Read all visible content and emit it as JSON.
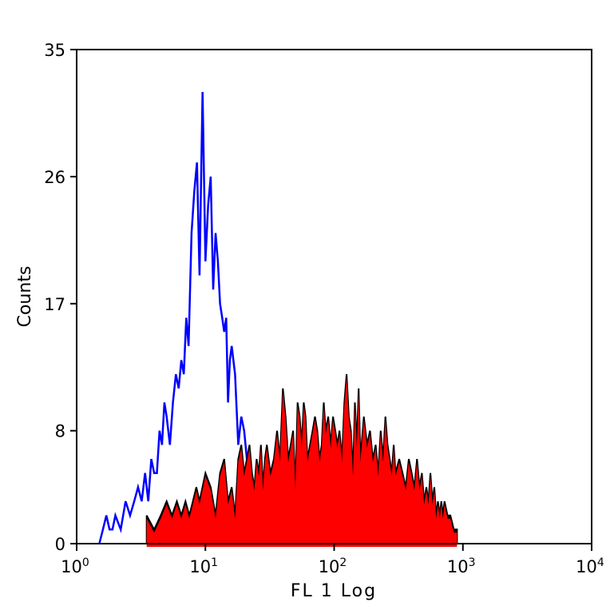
{
  "chart_data": {
    "type": "area",
    "title": "",
    "xlabel": "FL 1 Log",
    "ylabel": "Counts",
    "x_scale": "log",
    "xlim": [
      1,
      10000
    ],
    "ylim": [
      0,
      35
    ],
    "x_tick_values": [
      1,
      10,
      100,
      1000,
      10000
    ],
    "x_tick_base": "10",
    "x_tick_exponents": [
      "0",
      "1",
      "2",
      "3",
      "4"
    ],
    "y_ticks": [
      0,
      8,
      17,
      26,
      35
    ],
    "y_tick_labels": [
      "0",
      "8",
      "17",
      "26",
      "35"
    ],
    "grid": false,
    "legend": "none",
    "series": [
      {
        "style": "outline",
        "color": "#0000ff",
        "x": [
          1.5,
          1.6,
          1.7,
          1.8,
          1.9,
          2.0,
          2.2,
          2.4,
          2.6,
          2.8,
          3.0,
          3.2,
          3.4,
          3.6,
          3.8,
          4.0,
          4.2,
          4.4,
          4.6,
          4.8,
          5.0,
          5.3,
          5.6,
          5.9,
          6.2,
          6.5,
          6.8,
          7.1,
          7.4,
          7.8,
          8.2,
          8.6,
          9.0,
          9.5,
          10.0,
          10.5,
          11.0,
          11.5,
          12.0,
          12.5,
          13.0,
          13.5,
          14.0,
          14.5,
          15.0,
          15.5,
          16.0,
          17.0,
          18.0,
          19.0,
          20.0,
          21.0,
          22.0,
          23.0,
          24.0,
          25.0
        ],
        "values": [
          0,
          1,
          2,
          1,
          1,
          2,
          1,
          3,
          2,
          3,
          4,
          3,
          5,
          3,
          6,
          5,
          5,
          8,
          7,
          10,
          9,
          7,
          10,
          12,
          11,
          13,
          12,
          16,
          14,
          22,
          25,
          27,
          19,
          32,
          20,
          24,
          26,
          18,
          22,
          20,
          17,
          16,
          15,
          16,
          10,
          13,
          14,
          12,
          7,
          9,
          8,
          6,
          5,
          4,
          3,
          2
        ]
      },
      {
        "style": "filled",
        "fill": "#ff0000",
        "stroke": "#000000",
        "x": [
          3.5,
          4.0,
          4.5,
          5.0,
          5.5,
          6.0,
          6.5,
          7.0,
          7.5,
          8.0,
          8.5,
          9.0,
          10,
          11,
          12,
          13,
          14,
          15,
          16,
          17,
          18,
          19,
          20,
          21,
          22,
          23,
          24,
          25,
          26,
          27,
          28,
          29,
          30,
          32,
          34,
          36,
          38,
          40,
          42,
          44,
          46,
          48,
          50,
          52,
          54,
          56,
          58,
          60,
          62,
          65,
          68,
          71,
          74,
          77,
          80,
          83,
          86,
          90,
          94,
          98,
          102,
          106,
          110,
          115,
          120,
          125,
          130,
          135,
          140,
          145,
          150,
          155,
          160,
          170,
          180,
          190,
          200,
          210,
          220,
          230,
          240,
          250,
          260,
          270,
          280,
          290,
          300,
          320,
          340,
          360,
          380,
          400,
          420,
          440,
          460,
          480,
          500,
          520,
          540,
          560,
          580,
          600,
          620,
          640,
          660,
          680,
          700,
          720,
          760,
          800,
          850,
          900
        ],
        "values": [
          2,
          1,
          2,
          3,
          2,
          3,
          2,
          3,
          2,
          3,
          4,
          3,
          5,
          4,
          2,
          5,
          6,
          3,
          4,
          2,
          6,
          7,
          5,
          6,
          7,
          5,
          4,
          6,
          5,
          7,
          4,
          6,
          7,
          5,
          6,
          8,
          6,
          11,
          9,
          6,
          7,
          8,
          4,
          10,
          9,
          7,
          10,
          9,
          6,
          7,
          8,
          9,
          8,
          6,
          7,
          10,
          8,
          9,
          7,
          9,
          8,
          7,
          8,
          6,
          10,
          12,
          9,
          8,
          5,
          10,
          7,
          11,
          6,
          9,
          7,
          8,
          6,
          7,
          5,
          8,
          6,
          9,
          7,
          6,
          5,
          7,
          5,
          6,
          5,
          4,
          6,
          5,
          4,
          6,
          4,
          5,
          3,
          4,
          3,
          5,
          3,
          4,
          2,
          3,
          2,
          3,
          2,
          3,
          2,
          2,
          1,
          1
        ]
      }
    ]
  }
}
